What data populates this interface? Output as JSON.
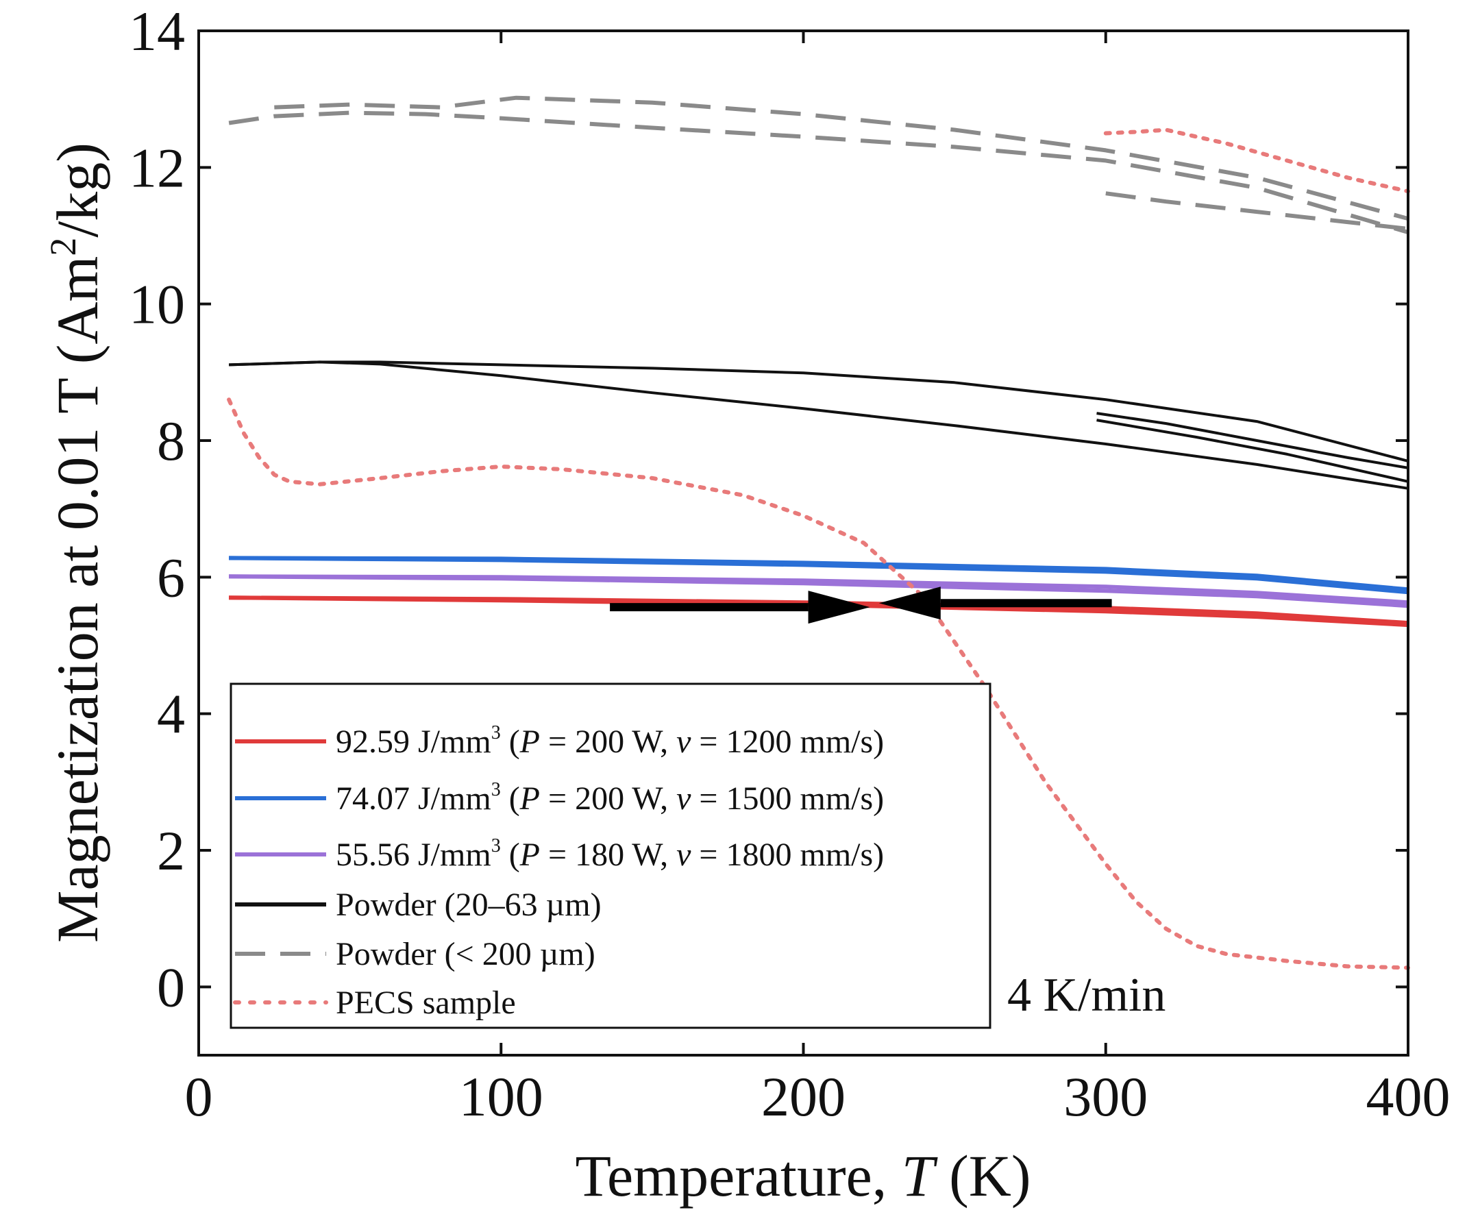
{
  "chart_data": {
    "type": "line",
    "xlabel_prefix": "Temperature, ",
    "xlabel_var": "T",
    "xlabel_suffix": " (K)",
    "ylabel_main": "Magnetization at 0.01 T (Am",
    "ylabel_sup": "2",
    "ylabel_end": "/kg)",
    "xlim": [
      0,
      400
    ],
    "ylim": [
      -1,
      14
    ],
    "x_ticks": [
      0,
      100,
      200,
      300,
      400
    ],
    "y_ticks": [
      0,
      2,
      4,
      6,
      8,
      10,
      12,
      14
    ],
    "grid": false,
    "annotation": "4 K/min",
    "legend_position": "bottom-left",
    "series": [
      {
        "key": "red",
        "color": "#e03a3a",
        "style": "solid",
        "label_pre": "92.59 J/mm",
        "label_sup": "3",
        "label_open": " (",
        "label_p": "P",
        "label_mid": " = 200 W, ",
        "label_v": "v",
        "label_end": " = 1200 mm/s)",
        "curves": [
          {
            "x": [
              10,
              100,
              200,
              300,
              350,
              400
            ],
            "y": [
              5.7,
              5.66,
              5.6,
              5.5,
              5.42,
              5.3
            ]
          },
          {
            "x": [
              10,
              100,
              200,
              300,
              350,
              400
            ],
            "y": [
              5.7,
              5.68,
              5.63,
              5.55,
              5.47,
              5.33
            ]
          }
        ]
      },
      {
        "key": "blue",
        "color": "#2a6fd6",
        "style": "solid",
        "label_pre": "74.07 J/mm",
        "label_sup": "3",
        "label_open": " (",
        "label_p": "P",
        "label_mid": " = 200 W, ",
        "label_v": "v",
        "label_end": " = 1500 mm/s)",
        "curves": [
          {
            "x": [
              10,
              100,
              200,
              300,
              350,
              400
            ],
            "y": [
              6.28,
              6.25,
              6.18,
              6.08,
              5.98,
              5.78
            ]
          },
          {
            "x": [
              10,
              100,
              200,
              300,
              350,
              400
            ],
            "y": [
              6.28,
              6.27,
              6.21,
              6.12,
              6.02,
              5.82
            ]
          }
        ]
      },
      {
        "key": "purple",
        "color": "#9b72d8",
        "style": "solid",
        "label_pre": "55.56 J/mm",
        "label_sup": "3",
        "label_open": " (",
        "label_p": "P",
        "label_mid": " = 180 W, ",
        "label_v": "v",
        "label_end": " = 1800 mm/s)",
        "curves": [
          {
            "x": [
              10,
              100,
              200,
              300,
              350,
              400
            ],
            "y": [
              6.01,
              5.98,
              5.91,
              5.8,
              5.72,
              5.58
            ]
          },
          {
            "x": [
              10,
              100,
              200,
              300,
              350,
              400
            ],
            "y": [
              6.01,
              6.0,
              5.95,
              5.86,
              5.77,
              5.63
            ]
          }
        ]
      },
      {
        "key": "black",
        "color": "#111111",
        "style": "solid",
        "label": "Powder (20–63 µm)",
        "curves": [
          {
            "x": [
              10,
              40,
              60,
              100,
              150,
              200,
              250,
              300,
              350,
              400
            ],
            "y": [
              9.11,
              9.15,
              9.15,
              9.11,
              9.06,
              8.99,
              8.85,
              8.6,
              8.28,
              7.7
            ]
          },
          {
            "x": [
              10,
              40,
              60,
              100,
              150,
              200,
              250,
              300,
              350,
              400
            ],
            "y": [
              9.11,
              9.15,
              9.12,
              8.95,
              8.7,
              8.47,
              8.22,
              7.95,
              7.65,
              7.3
            ]
          },
          {
            "x": [
              297,
              320,
              350,
              380,
              400
            ],
            "y": [
              8.4,
              8.25,
              8.0,
              7.75,
              7.6
            ]
          },
          {
            "x": [
              297,
              330,
              360,
              400
            ],
            "y": [
              8.3,
              8.05,
              7.8,
              7.4
            ]
          }
        ]
      },
      {
        "key": "gray",
        "color": "#8a8a8a",
        "style": "dashed",
        "label": "Powder (< 200 µm)",
        "curves": [
          {
            "x": [
              10,
              25,
              50,
              75,
              100,
              150,
              200,
              250,
              300,
              350,
              400
            ],
            "y": [
              12.65,
              12.75,
              12.8,
              12.78,
              12.72,
              12.58,
              12.45,
              12.3,
              12.1,
              11.7,
              11.05
            ]
          },
          {
            "x": [
              25,
              50,
              80,
              105,
              150,
              200,
              250,
              300,
              350,
              400
            ],
            "y": [
              12.88,
              12.92,
              12.88,
              13.02,
              12.95,
              12.78,
              12.55,
              12.25,
              11.85,
              11.25
            ]
          },
          {
            "x": [
              300,
              320,
              350,
              380,
              400
            ],
            "y": [
              11.62,
              11.5,
              11.35,
              11.2,
              11.1
            ]
          }
        ]
      },
      {
        "key": "pecs",
        "color": "#e87a7a",
        "style": "dotted",
        "label": "PECS sample",
        "curves": [
          {
            "x": [
              10,
              15,
              20,
              25,
              30,
              40,
              60,
              80,
              100,
              120,
              150,
              180,
              200,
              220,
              240,
              260,
              280,
              300,
              310,
              320,
              330,
              340,
              360,
              380,
              400
            ],
            "y": [
              8.6,
              8.1,
              7.75,
              7.5,
              7.4,
              7.36,
              7.45,
              7.55,
              7.62,
              7.58,
              7.45,
              7.2,
              6.9,
              6.5,
              5.7,
              4.4,
              3.0,
              1.8,
              1.25,
              0.85,
              0.6,
              0.48,
              0.38,
              0.3,
              0.28
            ]
          },
          {
            "x": [
              300,
              310,
              320,
              330,
              340,
              360,
              380,
              400
            ],
            "y": [
              12.5,
              12.52,
              12.55,
              12.45,
              12.35,
              12.1,
              11.85,
              11.65
            ]
          }
        ]
      }
    ],
    "arrows": [
      {
        "direction": "heating",
        "x_start": 136,
        "x_tip": 222,
        "y": 5.56
      },
      {
        "direction": "cooling",
        "x_start": 302,
        "x_tip": 225,
        "y": 5.62
      }
    ]
  }
}
